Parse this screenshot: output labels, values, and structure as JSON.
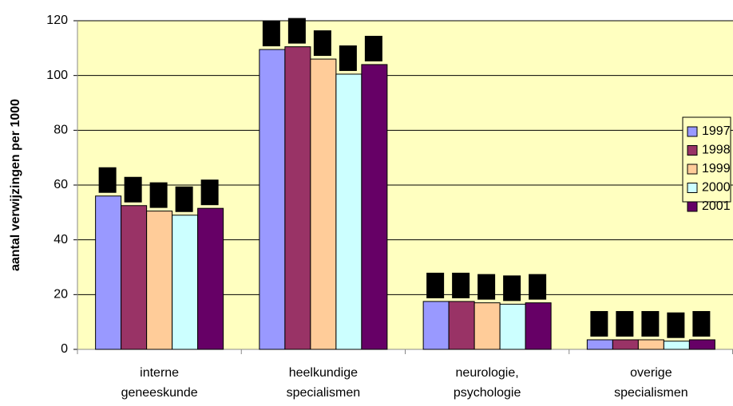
{
  "chart_data": {
    "type": "bar",
    "y_label": "aantal verwijzingen per 1000",
    "categories": [
      [
        "interne",
        "geneeskunde"
      ],
      [
        "heelkundige",
        "specialismen"
      ],
      [
        "neurologie,",
        "psychologie"
      ],
      [
        "overige",
        "specialismen"
      ]
    ],
    "series": [
      {
        "name": "1997",
        "color": "#9999ff",
        "values": [
          56,
          109.5,
          17.5,
          3.5
        ]
      },
      {
        "name": "1998",
        "color": "#993366",
        "values": [
          52.5,
          110.5,
          17.5,
          3.5
        ]
      },
      {
        "name": "1999",
        "color": "#ffcc99",
        "values": [
          50.5,
          106,
          17,
          3.5
        ]
      },
      {
        "name": "2000",
        "color": "#ccffff",
        "values": [
          49,
          100.5,
          16.5,
          3
        ]
      },
      {
        "name": "2001",
        "color": "#660066",
        "values": [
          51.5,
          104,
          17,
          3.5
        ]
      }
    ],
    "ylim": [
      0,
      120
    ],
    "yticks": [
      0,
      20,
      40,
      60,
      80,
      100,
      120
    ],
    "grid": true,
    "legend": "right",
    "plot_background": "#ffffc0"
  }
}
